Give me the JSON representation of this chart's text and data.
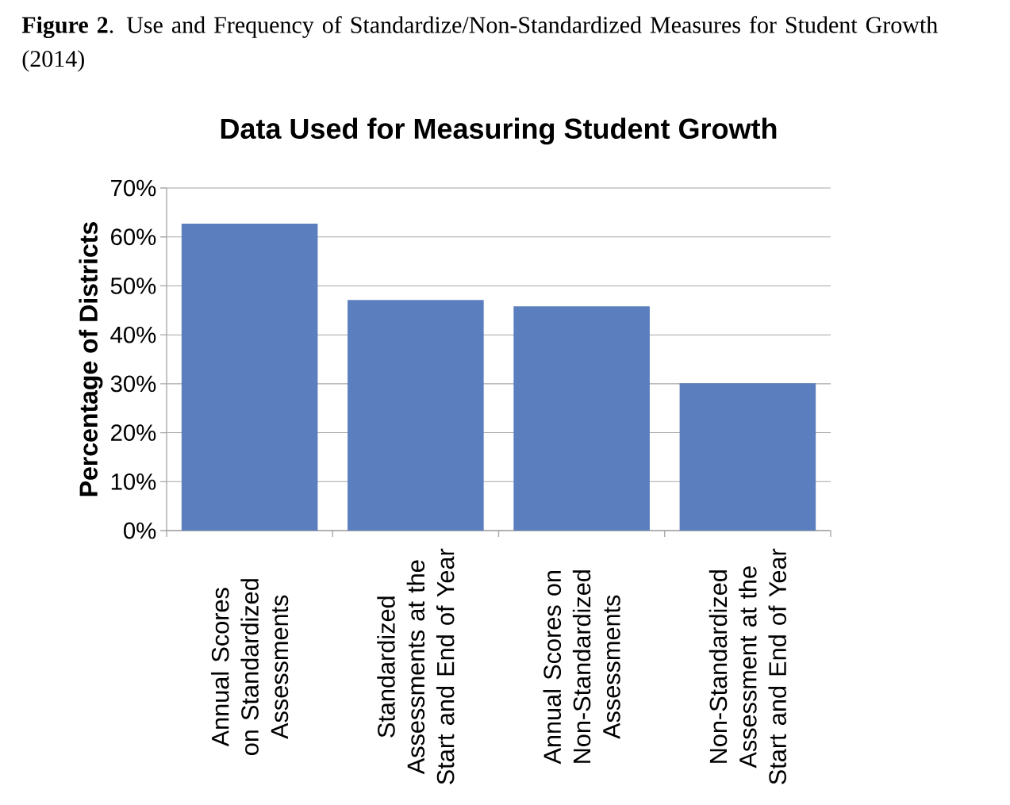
{
  "chart_data": {
    "type": "bar",
    "title": "Data Used for Measuring Student Growth",
    "ylabel": "Percentage of Districts",
    "annotations": [
      "**Figure 2**.  Use and Frequency of Standardize/Non-Standardized Measures for Student Growth (2014)"
    ],
    "categories": [
      "Annual Scores on Standardized Assessments",
      "Standardized Assessments at the Start and End of Year",
      "Annual Scores on Non-Standardized Assessments",
      "Non-Standardized Assessment at the Start and End of Year"
    ],
    "values": [
      62.7,
      47.1,
      45.8,
      30.1
    ],
    "color": "#5b7fbe",
    "ylim": [
      0,
      70
    ],
    "yticks": [
      {
        "value": 0,
        "label": "0%"
      },
      {
        "value": 10,
        "label": "10%"
      },
      {
        "value": 20,
        "label": "20%"
      },
      {
        "value": 30,
        "label": "30%"
      },
      {
        "value": 40,
        "label": "40%"
      },
      {
        "value": 50,
        "label": "50%"
      },
      {
        "value": 60,
        "label": "60%"
      },
      {
        "value": 70,
        "label": "70%"
      }
    ],
    "grid": "y"
  }
}
